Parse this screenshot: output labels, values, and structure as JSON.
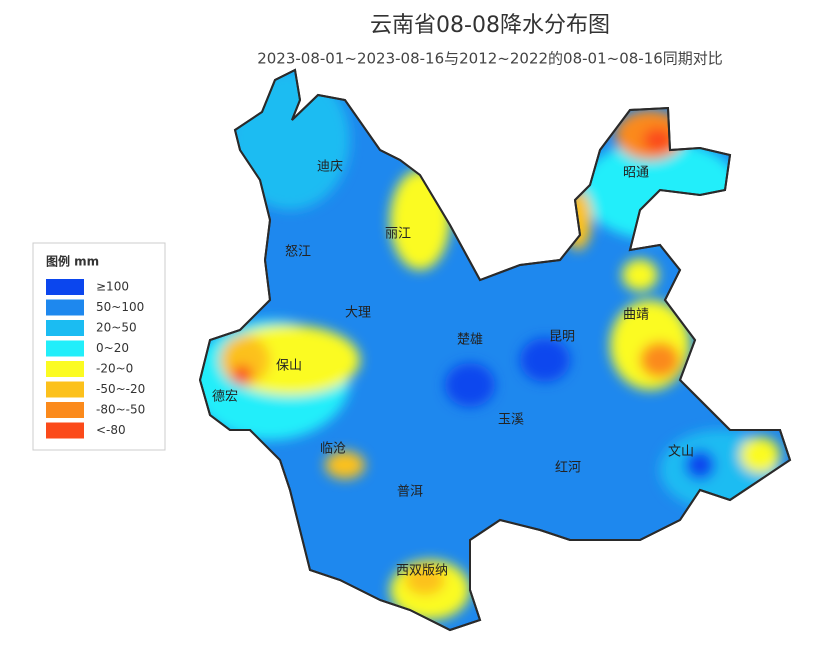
{
  "title": "云南省08-08降水分布图",
  "subtitle": "2023-08-01~2023-08-16与2012~2022的08-01~08-16同期对比",
  "legend": {
    "title": "图例 mm",
    "items": [
      {
        "label": "≥100",
        "color": "#0b46ee"
      },
      {
        "label": "50~100",
        "color": "#1e88ee"
      },
      {
        "label": "20~50",
        "color": "#1bbcf2"
      },
      {
        "label": "0~20",
        "color": "#22eefa"
      },
      {
        "label": "-20~0",
        "color": "#fbfb22"
      },
      {
        "label": "-50~-20",
        "color": "#fcc11c"
      },
      {
        "label": "-80~-50",
        "color": "#fb8a1c"
      },
      {
        "label": "<-80",
        "color": "#fb4a1a"
      }
    ]
  },
  "cities": [
    "迪庆",
    "丽江",
    "怒江",
    "大理",
    "楚雄",
    "昆明",
    "曲靖",
    "昭通",
    "保山",
    "德宏",
    "临沧",
    "玉溪",
    "红河",
    "文山",
    "普洱",
    "西双版纳"
  ]
}
